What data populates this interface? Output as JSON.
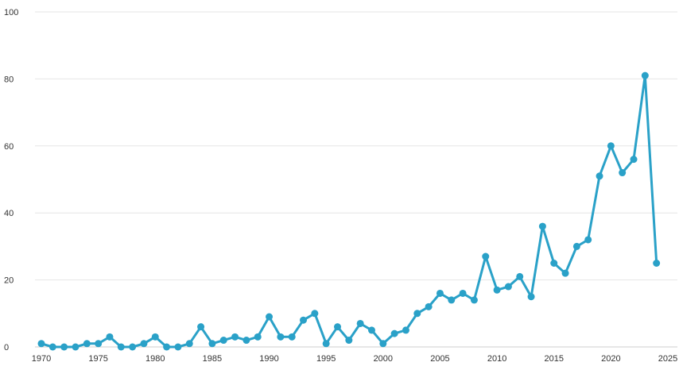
{
  "chart_data": {
    "type": "line",
    "title": "",
    "xlabel": "",
    "ylabel": "",
    "xlim": [
      1970,
      2025
    ],
    "ylim": [
      0,
      100
    ],
    "x_ticks": [
      "1970",
      "1975",
      "1980",
      "1985",
      "1990",
      "1995",
      "2000",
      "2005",
      "2010",
      "2015",
      "2020",
      "2025"
    ],
    "y_ticks": [
      "0",
      "20",
      "40",
      "60",
      "80",
      "100"
    ],
    "grid": true,
    "legend": "none",
    "color": "#2aa1c8",
    "series": [
      {
        "x": [
          1970,
          1971,
          1972,
          1973,
          1974,
          1975,
          1976,
          1977,
          1978,
          1979,
          1980,
          1981,
          1982,
          1983,
          1984,
          1985,
          1986,
          1987,
          1988,
          1989,
          1990,
          1991,
          1992,
          1993,
          1994,
          1995,
          1996,
          1997,
          1998,
          1999,
          2000,
          2001,
          2002,
          2003,
          2004,
          2005,
          2006,
          2007,
          2008,
          2009,
          2010,
          2011,
          2012,
          2013,
          2014,
          2015,
          2016,
          2017,
          2018,
          2019,
          2020,
          2021,
          2022,
          2023,
          2024
        ],
        "values": [
          1,
          0,
          0,
          0,
          1,
          1,
          3,
          0,
          0,
          1,
          3,
          0,
          0,
          1,
          6,
          1,
          2,
          3,
          2,
          3,
          9,
          3,
          3,
          8,
          10,
          1,
          6,
          2,
          7,
          5,
          1,
          4,
          5,
          10,
          12,
          16,
          14,
          16,
          14,
          27,
          17,
          18,
          21,
          15,
          36,
          25,
          22,
          30,
          32,
          51,
          60,
          52,
          56,
          81,
          25
        ]
      }
    ]
  }
}
